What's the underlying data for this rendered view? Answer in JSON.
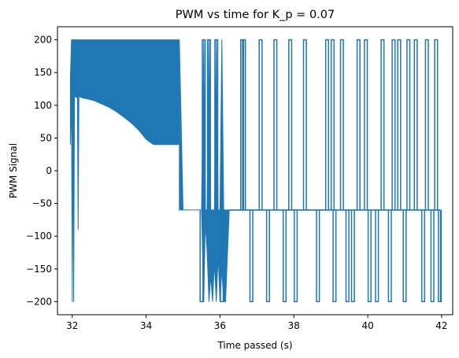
{
  "chart_data": {
    "type": "line",
    "title": "PWM vs time for K_p = 0.07",
    "xlabel": "Time passed (s)",
    "ylabel": "PWM Signal",
    "xlim": [
      31.6,
      42.3
    ],
    "ylim": [
      -220,
      220
    ],
    "xticks": [
      32,
      34,
      36,
      38,
      40,
      42
    ],
    "yticks": [
      -200,
      -150,
      -100,
      -50,
      0,
      50,
      100,
      150,
      200
    ],
    "grid": false,
    "legend": "none",
    "color": "#1f77b4",
    "dense_band_fill_color": "#1f77b4",
    "series": [
      {
        "x": [
          31.95,
          31.98,
          32.0,
          32.02,
          32.04,
          32.06,
          32.08,
          32.1,
          32.12,
          32.14,
          32.16,
          32.18,
          32.2,
          32.22,
          32.24,
          32.3,
          32.4,
          32.6,
          32.8,
          33.0,
          33.2,
          33.4,
          33.6,
          33.8,
          34.0,
          34.2,
          34.4,
          34.6,
          34.88
        ],
        "upper": [
          140,
          200,
          200,
          200,
          200,
          200,
          200,
          200,
          200,
          200,
          200,
          200,
          200,
          200,
          200,
          200,
          200,
          200,
          200,
          200,
          200,
          200,
          200,
          200,
          200,
          200,
          200,
          200,
          200
        ],
        "lower": [
          40,
          115,
          -200,
          115,
          -200,
          112,
          115,
          112,
          112,
          115,
          -90,
          112,
          115,
          112,
          112,
          111,
          110,
          107,
          102,
          97,
          90,
          82,
          73,
          62,
          48,
          40,
          40,
          40,
          40
        ]
      },
      {
        "x": [
          34.9,
          35.0,
          35.5,
          35.56,
          35.6,
          35.65,
          35.7,
          35.75,
          35.8,
          35.85,
          35.9,
          35.95,
          36.0,
          36.05,
          36.1,
          36.15,
          36.2,
          36.25
        ],
        "upper": [
          200,
          -60,
          -60,
          200,
          -60,
          -60,
          200,
          -60,
          -60,
          -60,
          200,
          -60,
          -60,
          200,
          -60,
          -60,
          -60,
          -60
        ],
        "lower": [
          -60,
          -60,
          -60,
          -200,
          -80,
          -120,
          -200,
          -160,
          -200,
          -140,
          -200,
          -130,
          -200,
          -150,
          -200,
          -200,
          -130,
          -60
        ]
      }
    ],
    "events_x": [
      35.5,
      35.56,
      35.7,
      35.9,
      36.05,
      36.6,
      36.65,
      36.85,
      37.1,
      37.3,
      37.5,
      37.75,
      37.9,
      38.05,
      38.3,
      38.65,
      38.9,
      39.05,
      39.1,
      39.3,
      39.45,
      39.6,
      39.75,
      39.95,
      40.05,
      40.25,
      40.4,
      40.6,
      40.7,
      40.85,
      41.0,
      41.1,
      41.3,
      41.5,
      41.6,
      41.75,
      41.85,
      41.95
    ],
    "events_y": [
      -200,
      200,
      200,
      200,
      -200,
      200,
      200,
      -200,
      200,
      -200,
      200,
      -200,
      200,
      -200,
      200,
      -200,
      200,
      200,
      -200,
      200,
      -200,
      -200,
      200,
      200,
      -200,
      -200,
      200,
      -200,
      200,
      200,
      -200,
      200,
      200,
      -200,
      200,
      -200,
      200,
      -200
    ],
    "baseline_after": -60,
    "x_end": 41.97
  }
}
